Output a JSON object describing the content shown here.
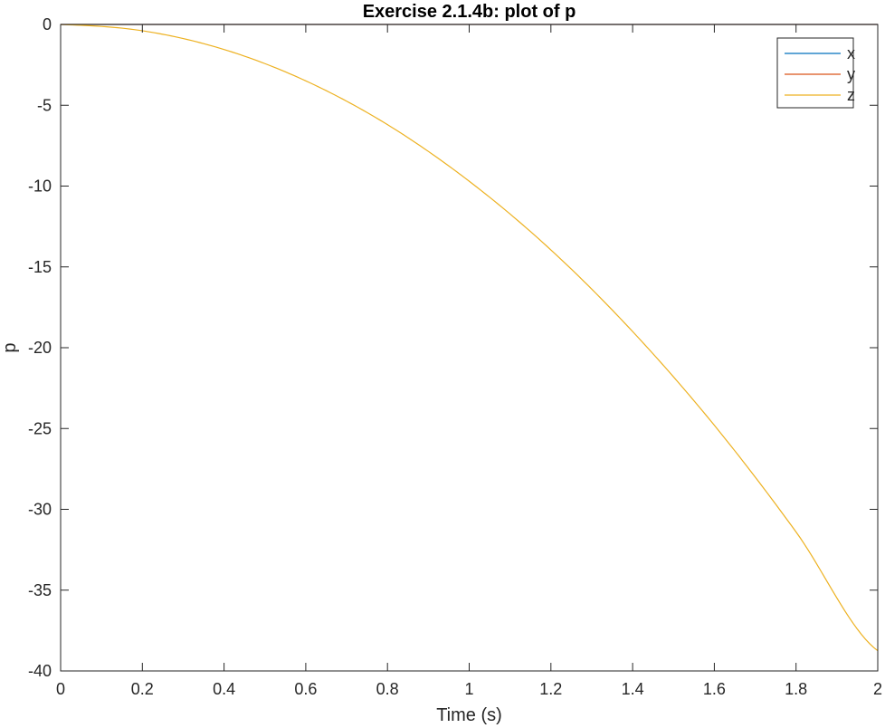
{
  "chart_data": {
    "type": "line",
    "title": "Exercise 2.1.4b: plot of p",
    "xlabel": "Time (s)",
    "ylabel": "p",
    "xlim": [
      0,
      2
    ],
    "ylim": [
      -40,
      0
    ],
    "xticks": [
      0,
      0.2,
      0.4,
      0.6,
      0.8,
      1,
      1.2,
      1.4,
      1.6,
      1.8,
      2
    ],
    "xtick_labels": [
      "0",
      "0.2",
      "0.4",
      "0.6",
      "0.8",
      "1",
      "1.2",
      "1.4",
      "1.6",
      "1.8",
      "2"
    ],
    "yticks": [
      0,
      -5,
      -10,
      -15,
      -20,
      -25,
      -30,
      -35,
      -40
    ],
    "ytick_labels": [
      "0",
      "-5",
      "-10",
      "-15",
      "-20",
      "-25",
      "-30",
      "-35",
      "-40"
    ],
    "grid": false,
    "legend_position": "top-right",
    "x": [
      0,
      0.2,
      0.4,
      0.6,
      0.8,
      1.0,
      1.2,
      1.4,
      1.6,
      1.8,
      2.0
    ],
    "series": [
      {
        "name": "x",
        "color": "#0072BD",
        "values": [
          0,
          0,
          0,
          0,
          0,
          0,
          0,
          0,
          0,
          0,
          0
        ]
      },
      {
        "name": "y",
        "color": "#D95319",
        "values": [
          0,
          0,
          0,
          0,
          0,
          0,
          0,
          0,
          0,
          0,
          0
        ]
      },
      {
        "name": "z",
        "color": "#EDB120",
        "values": [
          0,
          -0.39,
          -1.55,
          -3.49,
          -6.2,
          -9.7,
          -13.95,
          -19.0,
          -24.8,
          -31.4,
          -38.75
        ]
      }
    ]
  }
}
